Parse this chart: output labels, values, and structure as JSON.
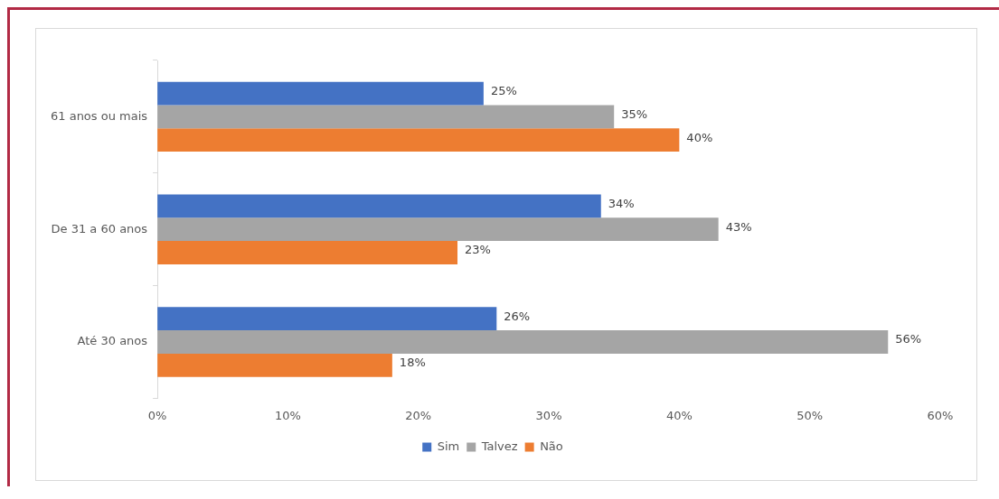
{
  "chart_data": {
    "type": "bar",
    "orientation": "horizontal",
    "categories": [
      "61 anos ou mais",
      "De 31 a 60 anos",
      "Até 30 anos"
    ],
    "series": [
      {
        "name": "Sim",
        "color": "#4472c4",
        "values": [
          25,
          34,
          26
        ],
        "value_labels": [
          "25%",
          "34%",
          "26%"
        ]
      },
      {
        "name": "Talvez",
        "color": "#a5a5a5",
        "values": [
          35,
          43,
          56
        ],
        "value_labels": [
          "35%",
          "43%",
          "56%"
        ]
      },
      {
        "name": "Não",
        "color": "#ed7d31",
        "values": [
          40,
          23,
          18
        ],
        "value_labels": [
          "40%",
          "23%",
          "18%"
        ]
      }
    ],
    "xlim": [
      0,
      60
    ],
    "xticks": [
      {
        "value": 0,
        "label": "0%"
      },
      {
        "value": 10,
        "label": "10%"
      },
      {
        "value": 20,
        "label": "20%"
      },
      {
        "value": 30,
        "label": "30%"
      },
      {
        "value": 40,
        "label": "40%"
      },
      {
        "value": 50,
        "label": "50%"
      },
      {
        "value": 60,
        "label": "60%"
      }
    ],
    "grid": false,
    "legend": "bottom"
  }
}
